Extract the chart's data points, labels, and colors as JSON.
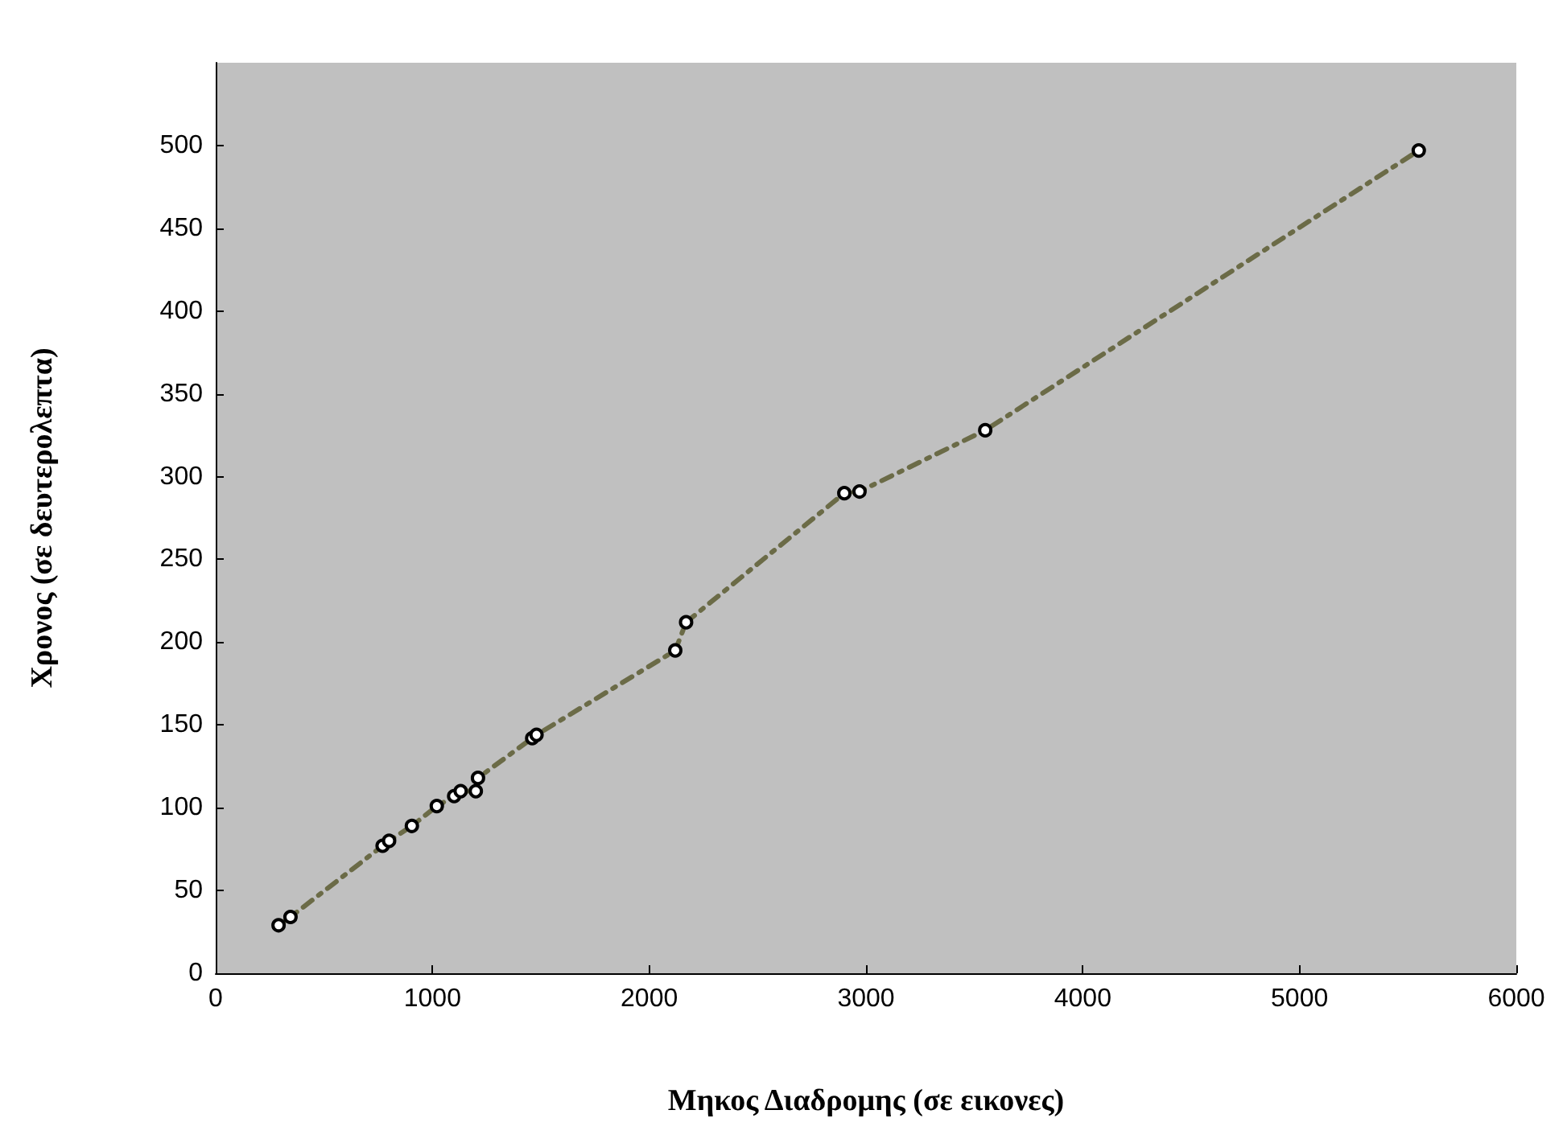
{
  "chart_data": {
    "type": "line",
    "xlabel": "Μηκος Διαδρομης (σε εικονες)",
    "ylabel": "Χρονος (σε δευτερολεπτα)",
    "x": [
      290,
      345,
      770,
      800,
      905,
      1020,
      1100,
      1130,
      1200,
      1210,
      1460,
      1480,
      2120,
      2170,
      2900,
      2970,
      3550,
      5550
    ],
    "series": [
      {
        "color": "#6b6b47",
        "values": [
          29,
          34,
          77,
          80,
          89,
          101,
          107,
          110,
          110,
          118,
          142,
          144,
          195,
          212,
          290,
          291,
          328,
          497
        ]
      }
    ],
    "xlim": [
      0,
      6000
    ],
    "xticks": [
      0,
      1000,
      2000,
      3000,
      4000,
      5000,
      6000
    ],
    "ylim": [
      0,
      550
    ],
    "yticks": [
      0,
      50,
      100,
      150,
      200,
      250,
      300,
      350,
      400,
      450,
      500
    ],
    "grid": false,
    "marker": "circle",
    "line_style": "dashed"
  }
}
